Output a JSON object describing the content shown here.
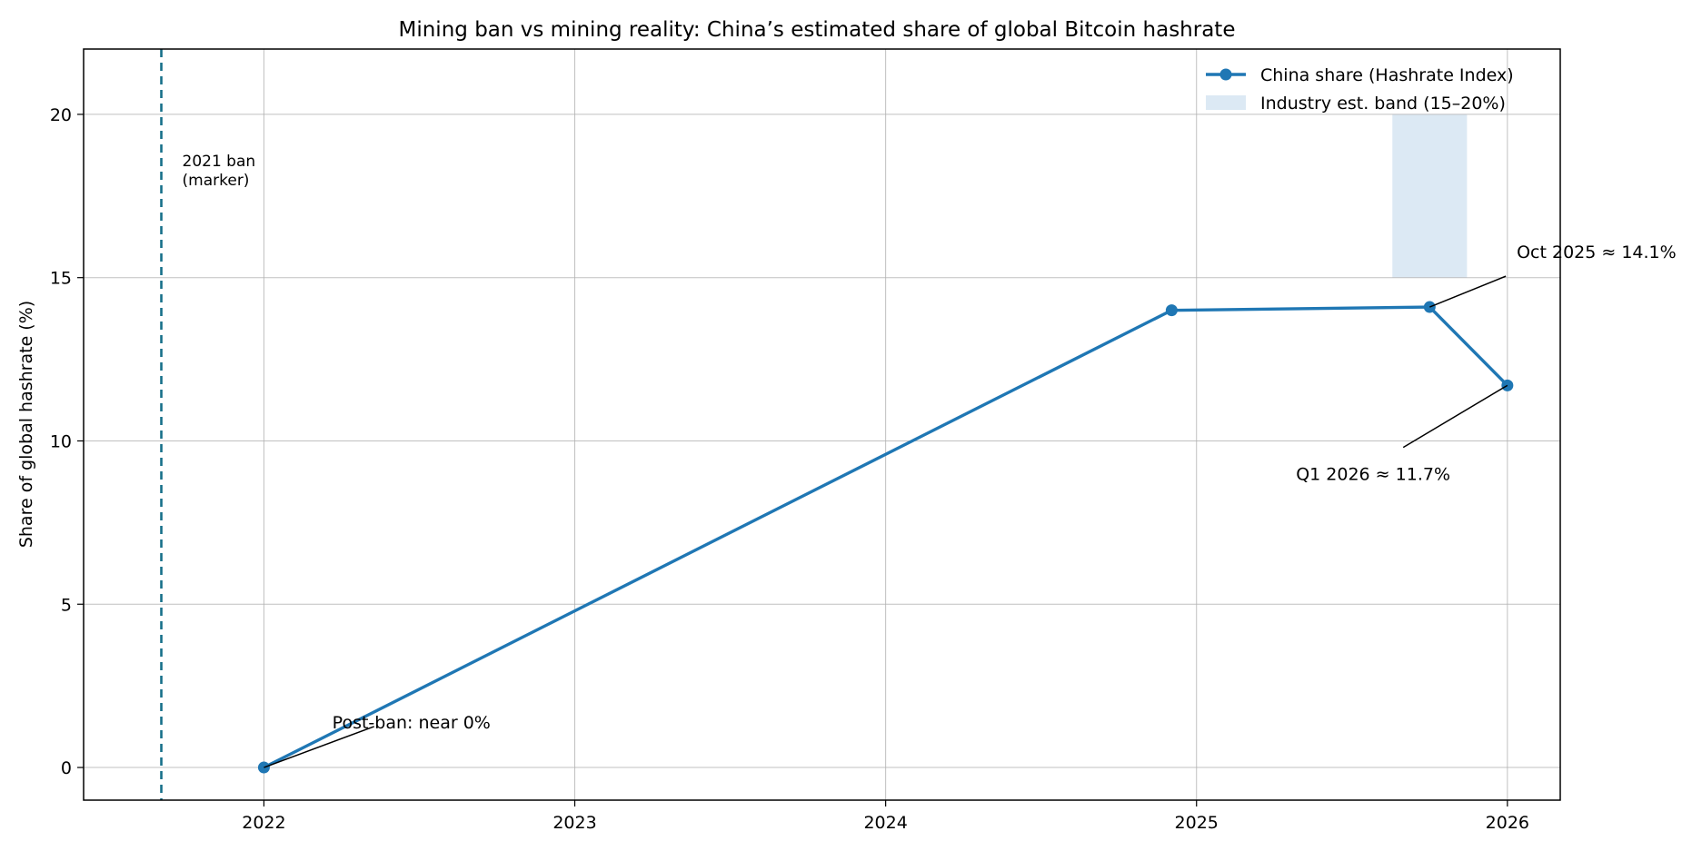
{
  "chart_data": {
    "type": "line",
    "title": "Mining ban vs mining reality: China’s estimated share of global Bitcoin hashrate",
    "xlabel": "",
    "ylabel": "Share of global hashrate (%)",
    "xlim": [
      2021.42,
      2026.17
    ],
    "ylim": [
      -1,
      22
    ],
    "x_ticks": [
      2022,
      2023,
      2024,
      2025,
      2026
    ],
    "x_tick_labels": [
      "2022",
      "2023",
      "2024",
      "2025",
      "2026"
    ],
    "y_ticks": [
      0,
      5,
      10,
      15,
      20
    ],
    "y_tick_labels": [
      "0",
      "5",
      "10",
      "15",
      "20"
    ],
    "grid": true,
    "legend_position": "top-right",
    "series": [
      {
        "name": "China share (Hashrate Index)",
        "color": "#1f77b4",
        "x": [
          2022.0,
          2024.92,
          2025.75,
          2026.0
        ],
        "y": [
          0.0,
          14.0,
          14.1,
          11.7
        ]
      }
    ],
    "bands": [
      {
        "name": "Industry est. band (15–20%)",
        "color": "#dce9f4",
        "x_range": [
          2025.63,
          2025.87
        ],
        "y_range": [
          15,
          20
        ]
      }
    ],
    "vlines": [
      {
        "x": 2021.67,
        "color": "#17708a",
        "style": "dashed",
        "label_line1": "2021 ban",
        "label_line2": "(marker)"
      }
    ],
    "annotations": [
      {
        "text": "Post-ban: near 0%",
        "point_x": 2022.0,
        "point_y": 0.0,
        "text_x": 2022.22,
        "text_y": 1.2
      },
      {
        "text": "Oct 2025 ≈ 14.1%",
        "point_x": 2025.75,
        "point_y": 14.1,
        "text_x": 2026.03,
        "text_y": 15.6
      },
      {
        "text": "Q1 2026 ≈ 11.7%",
        "point_x": 2026.0,
        "point_y": 11.7,
        "text_x": 2025.32,
        "text_y": 8.8
      }
    ]
  }
}
